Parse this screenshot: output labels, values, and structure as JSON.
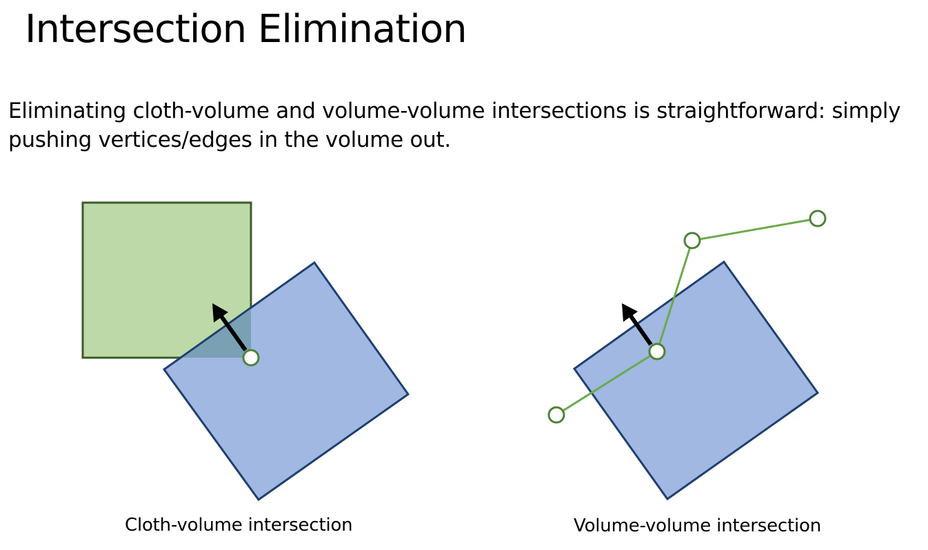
{
  "slide": {
    "title": "Intersection Elimination",
    "body_lines": [
      "Eliminating cloth-volume and volume-volume intersections is straightforward: simply",
      "pushing vertices/edges in the volume out."
    ]
  },
  "diagrams": {
    "left": {
      "caption": "Cloth-volume intersection"
    },
    "right": {
      "caption": "Volume-volume intersection"
    }
  },
  "colors": {
    "green_fill": "#bcd9a7",
    "green_stroke": "#3b5b2a",
    "blue_fill": "#a0b8e2",
    "blue_stroke": "#1f3f6e",
    "overlap_fill": "#7aa0b4",
    "edge_green": "#6aaa4a",
    "vertex_stroke": "#4e8236",
    "arrow": "#000000"
  }
}
